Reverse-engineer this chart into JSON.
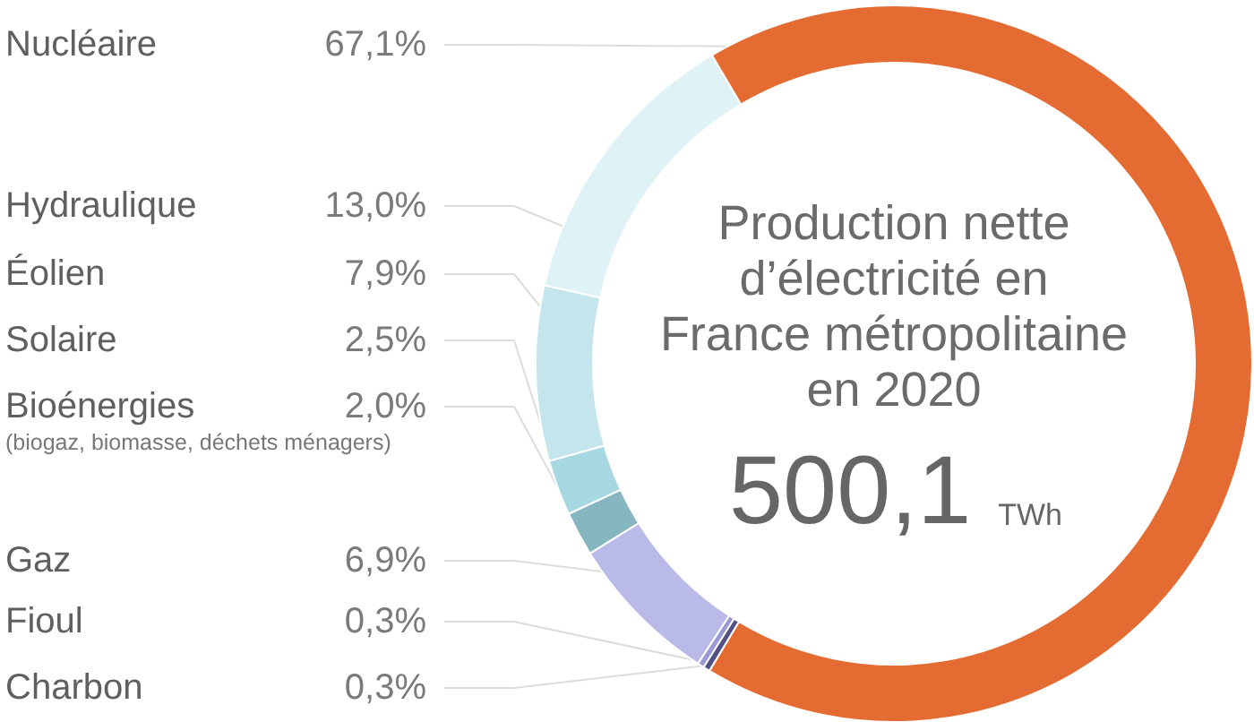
{
  "chart_data": {
    "type": "donut",
    "title": "Production nette d’électricité en France métropolitaine en 2020",
    "subtitle": "500,1 TWh",
    "categories": [
      "Nucléaire",
      "Hydraulique",
      "Éolien",
      "Solaire",
      "Bioénergies",
      "Gaz",
      "Fioul",
      "Charbon"
    ],
    "values": [
      67.1,
      13.0,
      7.9,
      2.5,
      2.0,
      6.9,
      0.3,
      0.3
    ],
    "value_labels": [
      "67,1%",
      "13,0%",
      "7,9%",
      "2,5%",
      "2,0%",
      "6,9%",
      "0,3%",
      "0,3%"
    ],
    "colors": [
      "#e46c33",
      "#dff2f6",
      "#c3e5eb",
      "#a7d8e2",
      "#86b7c1",
      "#babae9",
      "#9a9ad4",
      "#4f5282"
    ],
    "annotations": [
      {
        "text": "(biogaz, biomasse, déchets ménagers)",
        "x": "Bioénergies"
      }
    ]
  }
}
